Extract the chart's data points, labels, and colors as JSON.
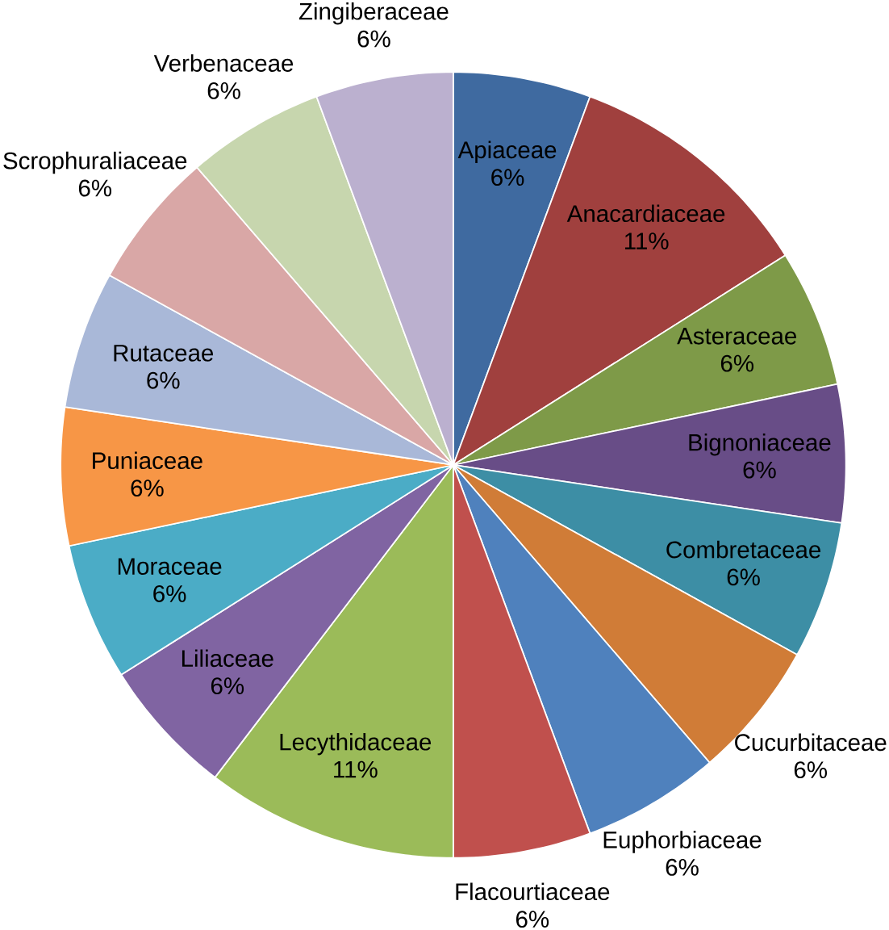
{
  "chart_data": {
    "type": "pie",
    "categories": [
      "Apiaceae",
      "Anacardiaceae",
      "Asteraceae",
      "Bignoniaceae",
      "Combretaceae",
      "Cucurbitaceae",
      "Euphorbiaceae",
      "Flacourtiaceae",
      "Lecythidaceae",
      "Liliaceae",
      "Moraceae",
      "Puniaceae",
      "Rutaceae",
      "Scrophuraliaceae",
      "Verbenaceae",
      "Zingiberaceae"
    ],
    "values": [
      6,
      11,
      6,
      6,
      6,
      6,
      6,
      6,
      11,
      6,
      6,
      6,
      6,
      6,
      6,
      6
    ],
    "value_labels": [
      "6%",
      "11%",
      "6%",
      "6%",
      "6%",
      "6%",
      "6%",
      "6%",
      "11%",
      "6%",
      "6%",
      "6%",
      "6%",
      "6%",
      "6%",
      "6%"
    ],
    "colors": [
      "#3f6aa0",
      "#a0403e",
      "#7e9a48",
      "#684d87",
      "#3d8ea5",
      "#d07c37",
      "#4f81bd",
      "#c0504d",
      "#9bbb59",
      "#8064a2",
      "#4bacc6",
      "#f79646",
      "#a9b8d8",
      "#d9a7a6",
      "#c7d6ae",
      "#bbb0cf"
    ]
  }
}
